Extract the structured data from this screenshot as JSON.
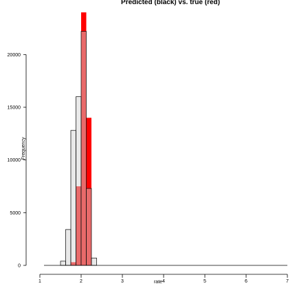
{
  "chart_data": {
    "type": "bar",
    "title": "Predicted (black) vs. true (red)",
    "xlabel": "rate",
    "ylabel": "Frequency",
    "xlim": [
      1,
      7
    ],
    "ylim": [
      0,
      22500
    ],
    "x_ticks": [
      1,
      2,
      3,
      4,
      5,
      6,
      7
    ],
    "y_ticks": [
      0,
      5000,
      10000,
      15000,
      20000
    ],
    "bin_width": 0.125,
    "series": [
      {
        "name": "true",
        "color": "#ff0000",
        "style": "filled",
        "bins": [
          {
            "x0": 1.75,
            "value": 300
          },
          {
            "x0": 1.875,
            "value": 7500
          },
          {
            "x0": 2.0,
            "value": 24000
          },
          {
            "x0": 2.125,
            "value": 14000
          }
        ]
      },
      {
        "name": "predicted",
        "color": "#d3d3d3",
        "style": "outlined",
        "bins": [
          {
            "x0": 1.5,
            "value": 400
          },
          {
            "x0": 1.625,
            "value": 3400
          },
          {
            "x0": 1.75,
            "value": 12800
          },
          {
            "x0": 1.875,
            "value": 16000
          },
          {
            "x0": 2.0,
            "value": 22200
          },
          {
            "x0": 2.125,
            "value": 7300
          },
          {
            "x0": 2.25,
            "value": 700
          }
        ]
      }
    ],
    "grid": false,
    "legend": "none"
  }
}
